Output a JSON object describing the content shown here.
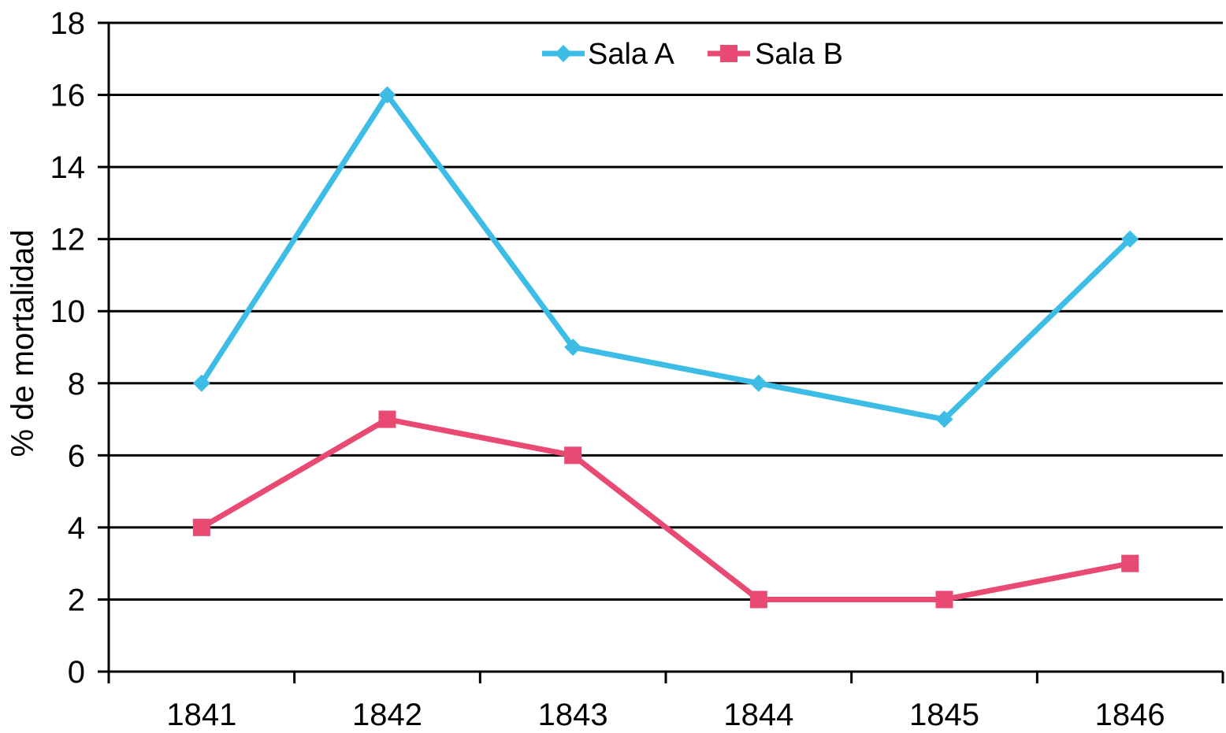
{
  "chart_data": {
    "type": "line",
    "title": "",
    "xlabel": "",
    "ylabel": "% de mortalidad",
    "categories": [
      "1841",
      "1842",
      "1843",
      "1844",
      "1845",
      "1846"
    ],
    "yticks": [
      0,
      2,
      4,
      6,
      8,
      10,
      12,
      14,
      16,
      18
    ],
    "ylim": [
      0,
      18
    ],
    "grid": true,
    "legend_position": "top-center",
    "series": [
      {
        "name": "Sala A",
        "values": [
          8,
          16,
          9,
          8,
          7,
          12
        ],
        "color": "#3dbde6",
        "marker": "diamond"
      },
      {
        "name": "Sala B",
        "values": [
          4,
          7,
          6,
          2,
          2,
          3
        ],
        "color": "#e84a73",
        "marker": "square"
      }
    ]
  }
}
